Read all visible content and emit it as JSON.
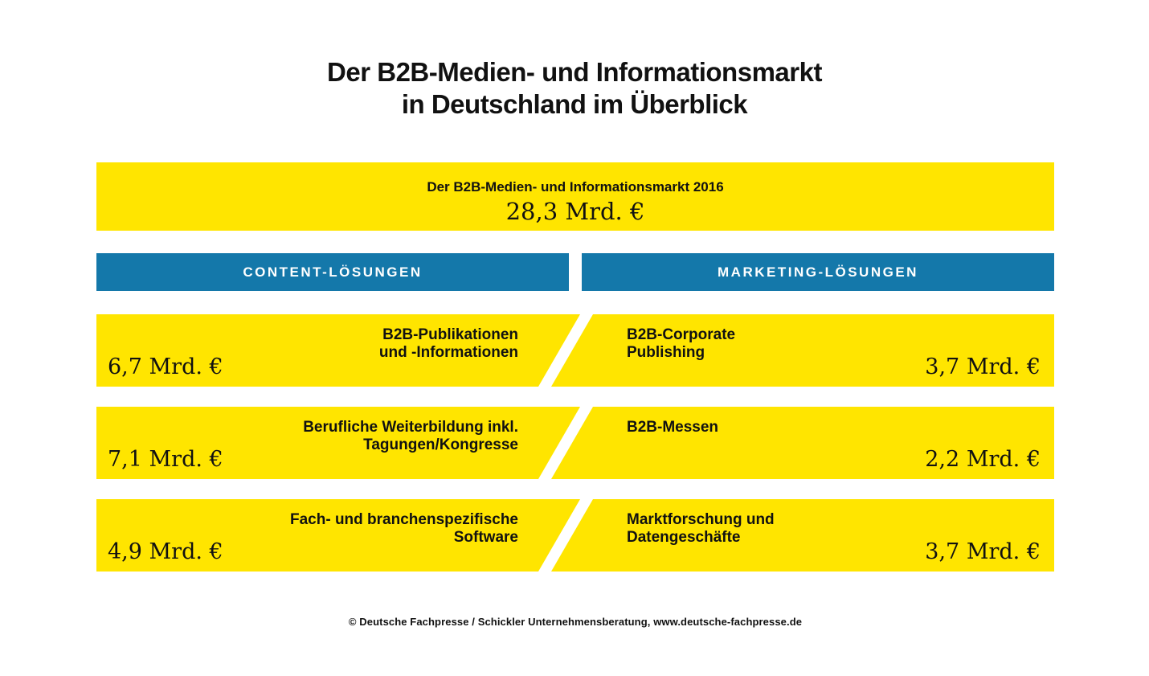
{
  "page": {
    "title_line1": "Der B2B-Medien- und Informationsmarkt",
    "title_line2": "in Deutschland im Überblick",
    "footer": "© Deutsche Fachpresse / Schickler Unternehmensberatung, www.deutsche-fachpresse.de"
  },
  "banner": {
    "label": "Der B2B-Medien- und Informationsmarkt 2016",
    "value": "28,3 Mrd. €"
  },
  "columns": {
    "left_header": "CONTENT-LÖSUNGEN",
    "right_header": "MARKETING-LÖSUNGEN"
  },
  "rows": [
    {
      "left": {
        "label_line1": "B2B-Publikationen",
        "label_line2": "und -Informationen",
        "value": "6,7 Mrd. €"
      },
      "right": {
        "label_line1": "B2B-Corporate",
        "label_line2": "Publishing",
        "value": "3,7 Mrd. €"
      }
    },
    {
      "left": {
        "label_line1": "Berufliche Weiterbildung inkl.",
        "label_line2": "Tagungen/Kongresse",
        "value": "7,1 Mrd. €"
      },
      "right": {
        "label_line1": "B2B-Messen",
        "label_line2": "",
        "value": "2,2 Mrd. €"
      }
    },
    {
      "left": {
        "label_line1": "Fach- und branchenspezifische",
        "label_line2": "Software",
        "value": "4,9 Mrd. €"
      },
      "right": {
        "label_line1": "Marktforschung und",
        "label_line2": "Datengeschäfte",
        "value": "3,7 Mrd. €"
      }
    }
  ],
  "colors": {
    "yellow": "#FFE500",
    "blue": "#1478AA",
    "text": "#111111"
  },
  "chart_data": {
    "type": "bar",
    "title": "Der B2B-Medien- und Informationsmarkt in Deutschland im Überblick",
    "unit": "Mrd. €",
    "total": {
      "label": "Der B2B-Medien- und Informationsmarkt 2016",
      "value": 28.3
    },
    "groups": [
      {
        "name": "CONTENT-LÖSUNGEN",
        "segments": [
          {
            "label": "B2B-Publikationen und -Informationen",
            "value": 6.7
          },
          {
            "label": "Berufliche Weiterbildung inkl. Tagungen/Kongresse",
            "value": 7.1
          },
          {
            "label": "Fach- und branchenspezifische Software",
            "value": 4.9
          }
        ]
      },
      {
        "name": "MARKETING-LÖSUNGEN",
        "segments": [
          {
            "label": "B2B-Corporate Publishing",
            "value": 3.7
          },
          {
            "label": "B2B-Messen",
            "value": 2.2
          },
          {
            "label": "Marktforschung und Datengeschäfte",
            "value": 3.7
          }
        ]
      }
    ],
    "legend_position": "none",
    "grid": false,
    "source": "© Deutsche Fachpresse / Schickler Unternehmensberatung, www.deutsche-fachpresse.de"
  }
}
